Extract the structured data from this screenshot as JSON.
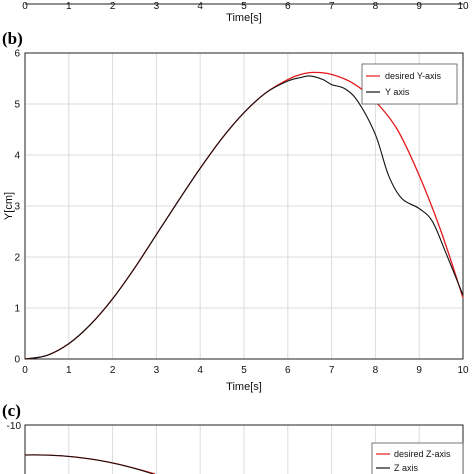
{
  "panels": {
    "top_partial": {
      "x_ticks": [
        "0",
        "1",
        "2",
        "3",
        "4",
        "5",
        "6",
        "7",
        "8",
        "9",
        "10"
      ],
      "xlabel": "Time[s]"
    },
    "b": {
      "label": "(b)"
    },
    "c": {
      "label": "(c)",
      "y_tick_top": "-10",
      "legend": [
        "desired Z-axis",
        "Z axis"
      ]
    }
  },
  "colors": {
    "desired": "#e31a1c",
    "actual": "#111111",
    "grid": "#dcdcdc"
  },
  "chart_data": [
    {
      "type": "line",
      "panel": "b",
      "xlabel": "Time[s]",
      "ylabel": "Y[cm]",
      "xlim": [
        0,
        10
      ],
      "ylim": [
        0,
        6
      ],
      "x_ticks": [
        "0",
        "1",
        "2",
        "3",
        "4",
        "5",
        "6",
        "7",
        "8",
        "9",
        "10"
      ],
      "y_ticks": [
        "0",
        "1",
        "2",
        "3",
        "4",
        "5",
        "6"
      ],
      "grid": true,
      "legend_position": "top-right",
      "series": [
        {
          "name": "desired Y-axis",
          "color": "#e31a1c",
          "x": [
            0,
            0.5,
            1,
            1.5,
            2,
            2.5,
            3,
            3.5,
            4,
            4.5,
            5,
            5.5,
            6,
            6.3,
            6.6,
            7,
            7.5,
            8,
            8.5,
            9,
            9.5,
            10
          ],
          "y": [
            0,
            0.07,
            0.3,
            0.68,
            1.18,
            1.78,
            2.44,
            3.1,
            3.74,
            4.33,
            4.83,
            5.22,
            5.48,
            5.58,
            5.62,
            5.58,
            5.4,
            5.05,
            4.5,
            3.6,
            2.5,
            1.2
          ]
        },
        {
          "name": "Y axis",
          "color": "#111111",
          "x": [
            0,
            0.5,
            1,
            1.5,
            2,
            2.5,
            3,
            3.5,
            4,
            4.5,
            5,
            5.5,
            6,
            6.3,
            6.5,
            6.8,
            7,
            7.3,
            7.6,
            8,
            8.3,
            8.6,
            9,
            9.3,
            9.6,
            10
          ],
          "y": [
            0,
            0.07,
            0.3,
            0.68,
            1.18,
            1.78,
            2.44,
            3.1,
            3.74,
            4.33,
            4.83,
            5.22,
            5.45,
            5.52,
            5.55,
            5.48,
            5.38,
            5.3,
            5.05,
            4.4,
            3.6,
            3.15,
            2.95,
            2.7,
            2.1,
            1.25
          ]
        }
      ]
    },
    {
      "type": "line",
      "panel": "c",
      "partial": true,
      "xlim": [
        0,
        10
      ],
      "series": [
        {
          "name": "desired Z-axis",
          "color": "#e31a1c"
        },
        {
          "name": "Z axis",
          "color": "#111111"
        }
      ]
    }
  ]
}
